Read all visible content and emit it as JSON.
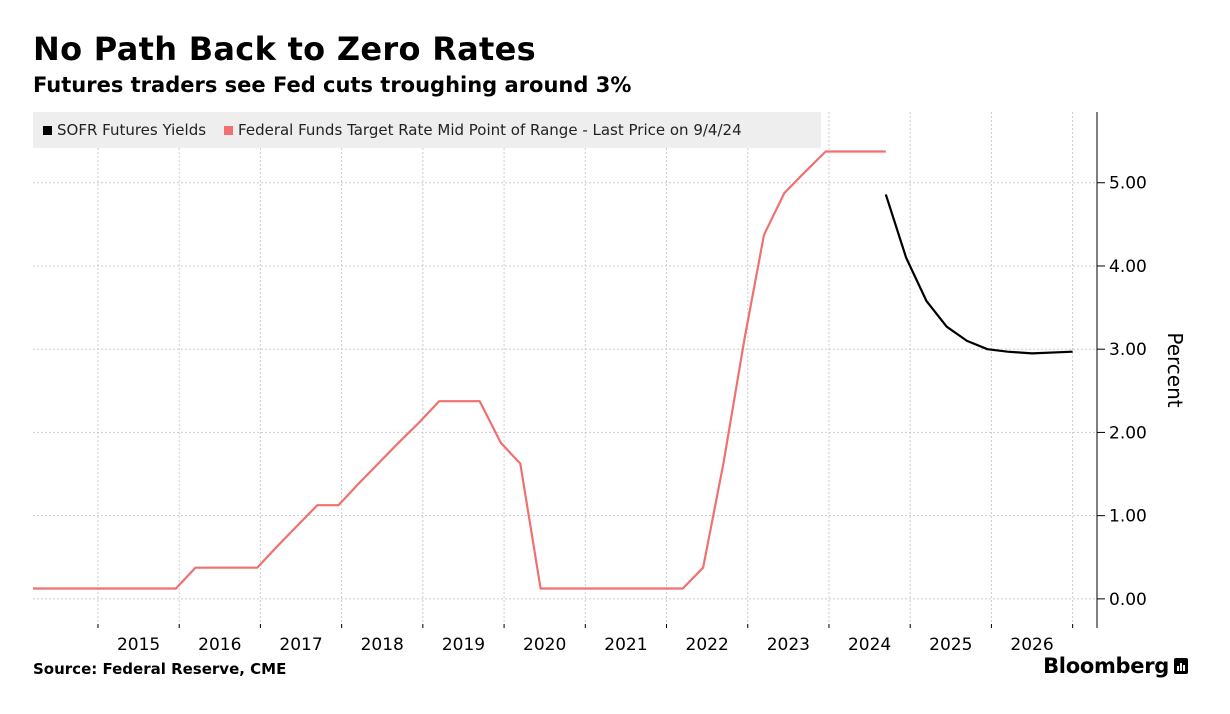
{
  "title": "No Path Back to Zero Rates",
  "subtitle": "Futures traders see Fed cuts troughing around 3%",
  "source": "Source: Federal Reserve, CME",
  "brand": "Bloomberg",
  "colors": {
    "sofr": "#000000",
    "fed": "#f07070",
    "grid": "#cccccc",
    "legend_bg": "#eeeeee"
  },
  "chart_data": {
    "type": "line",
    "title": "No Path Back to Zero Rates",
    "subtitle": "Futures traders see Fed cuts troughing around 3%",
    "xlabel": "",
    "ylabel": "Percent",
    "xlim": [
      2014.2,
      2027.3
    ],
    "ylim": [
      -0.35,
      5.85
    ],
    "x_ticks": [
      "2015",
      "2016",
      "2017",
      "2018",
      "2019",
      "2020",
      "2021",
      "2022",
      "2023",
      "2024",
      "2025",
      "2026"
    ],
    "y_ticks": [
      "0.00",
      "1.00",
      "2.00",
      "3.00",
      "4.00",
      "5.00"
    ],
    "legend_position": "top-left",
    "grid": true,
    "series": [
      {
        "name": "SOFR Futures Yields",
        "color": "#000000",
        "points": [
          [
            2024.7,
            4.86
          ],
          [
            2024.95,
            4.1
          ],
          [
            2025.2,
            3.58
          ],
          [
            2025.45,
            3.27
          ],
          [
            2025.7,
            3.1
          ],
          [
            2025.95,
            3.0
          ],
          [
            2026.2,
            2.97
          ],
          [
            2026.5,
            2.95
          ],
          [
            2027.0,
            2.97
          ]
        ]
      },
      {
        "name": "Federal Funds Target Rate Mid Point of Range - Last Price on 9/4/24",
        "color": "#f07070",
        "points": [
          [
            2014.2,
            0.125
          ],
          [
            2015.96,
            0.125
          ],
          [
            2016.2,
            0.375
          ],
          [
            2016.96,
            0.375
          ],
          [
            2017.2,
            0.625
          ],
          [
            2017.45,
            0.875
          ],
          [
            2017.7,
            1.125
          ],
          [
            2017.96,
            1.125
          ],
          [
            2018.2,
            1.375
          ],
          [
            2018.45,
            1.625
          ],
          [
            2018.7,
            1.875
          ],
          [
            2018.96,
            2.125
          ],
          [
            2019.2,
            2.375
          ],
          [
            2019.7,
            2.375
          ],
          [
            2019.96,
            1.875
          ],
          [
            2020.2,
            1.625
          ],
          [
            2020.45,
            0.125
          ],
          [
            2022.2,
            0.125
          ],
          [
            2022.45,
            0.375
          ],
          [
            2022.7,
            1.625
          ],
          [
            2022.96,
            3.125
          ],
          [
            2023.2,
            4.375
          ],
          [
            2023.45,
            4.875
          ],
          [
            2023.7,
            5.125
          ],
          [
            2023.96,
            5.375
          ],
          [
            2024.7,
            5.375
          ]
        ]
      }
    ]
  }
}
